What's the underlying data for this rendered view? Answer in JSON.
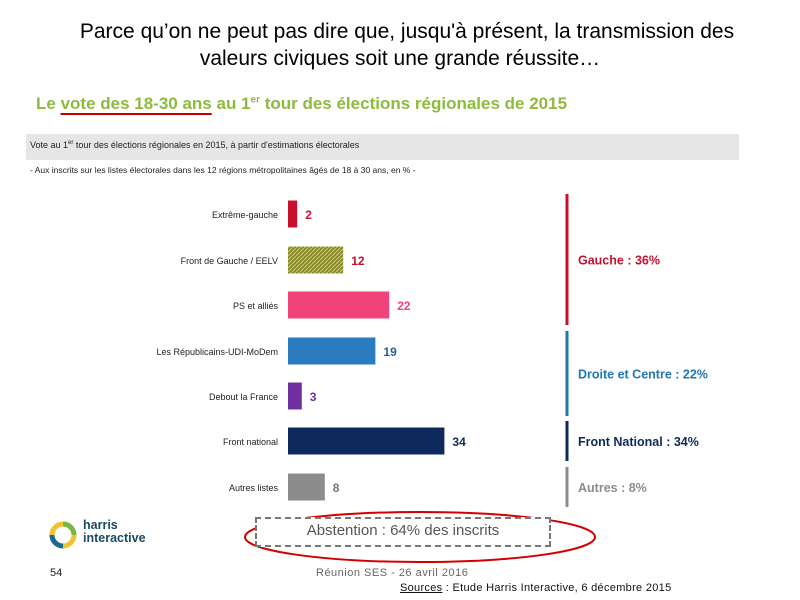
{
  "headline": {
    "line1": "Parce qu’on ne peut pas dire que,  jusqu'à présent, la transmission des",
    "line2": "valeurs civiques soit une grande réussite…"
  },
  "subtitle": {
    "prefix": "Le ",
    "underlined": "vote des 18-30 ans",
    "mid": " au 1",
    "sup": "er",
    "suffix": " tour des élections régionales de 2015"
  },
  "band": {
    "pre": "Vote au 1",
    "sup": "er",
    "post": " tour des élections régionales en 2015, à partir d'estimations électorales"
  },
  "note": "- Aux inscrits sur les listes électorales dans les 12 régions métropolitaines âgés de 18 à 30 ans, en % -",
  "chart_data": {
    "type": "bar",
    "orientation": "horizontal",
    "categories": [
      "Extrême-gauche",
      "Front de Gauche / EELV",
      "PS et alliés",
      "Les Républicains-UDI-MoDem",
      "Debout la France",
      "Front national",
      "Autres listes"
    ],
    "values": [
      2,
      12,
      22,
      19,
      3,
      34,
      8
    ],
    "colors": [
      "#c8102e",
      "#8b8b2a",
      "#f0437a",
      "#2b7bc1",
      "#7030a0",
      "#0e2a5c",
      "#8c8c8c"
    ],
    "label_colors": [
      "#c8102e",
      "#c8102e",
      "#f0437a",
      "#1f5f9e",
      "#7030a0",
      "#0e2a5c",
      "#777777"
    ],
    "xlim": [
      0,
      34
    ],
    "groups": [
      {
        "label": "Gauche : 36%",
        "rows": [
          0,
          2
        ],
        "color": "#c8102e"
      },
      {
        "label": "Droite et Centre : 22%",
        "rows": [
          3,
          4
        ],
        "color": "#1f77b4"
      },
      {
        "label": "Front National : 34%",
        "rows": [
          5,
          5
        ],
        "color": "#0e2a5c"
      },
      {
        "label": "Autres : 8%",
        "rows": [
          6,
          6
        ],
        "color": "#8c8c8c"
      }
    ]
  },
  "abstention": "Abstention : 64% des inscrits",
  "logo": {
    "line1": "harris",
    "line2": "interactive"
  },
  "footer": {
    "page_number": "54",
    "event": "Réunion SES - 26 avril 2016",
    "source_label": "Sources",
    "source_text": " : Etude Harris Interactive, 6 décembre 2015"
  }
}
